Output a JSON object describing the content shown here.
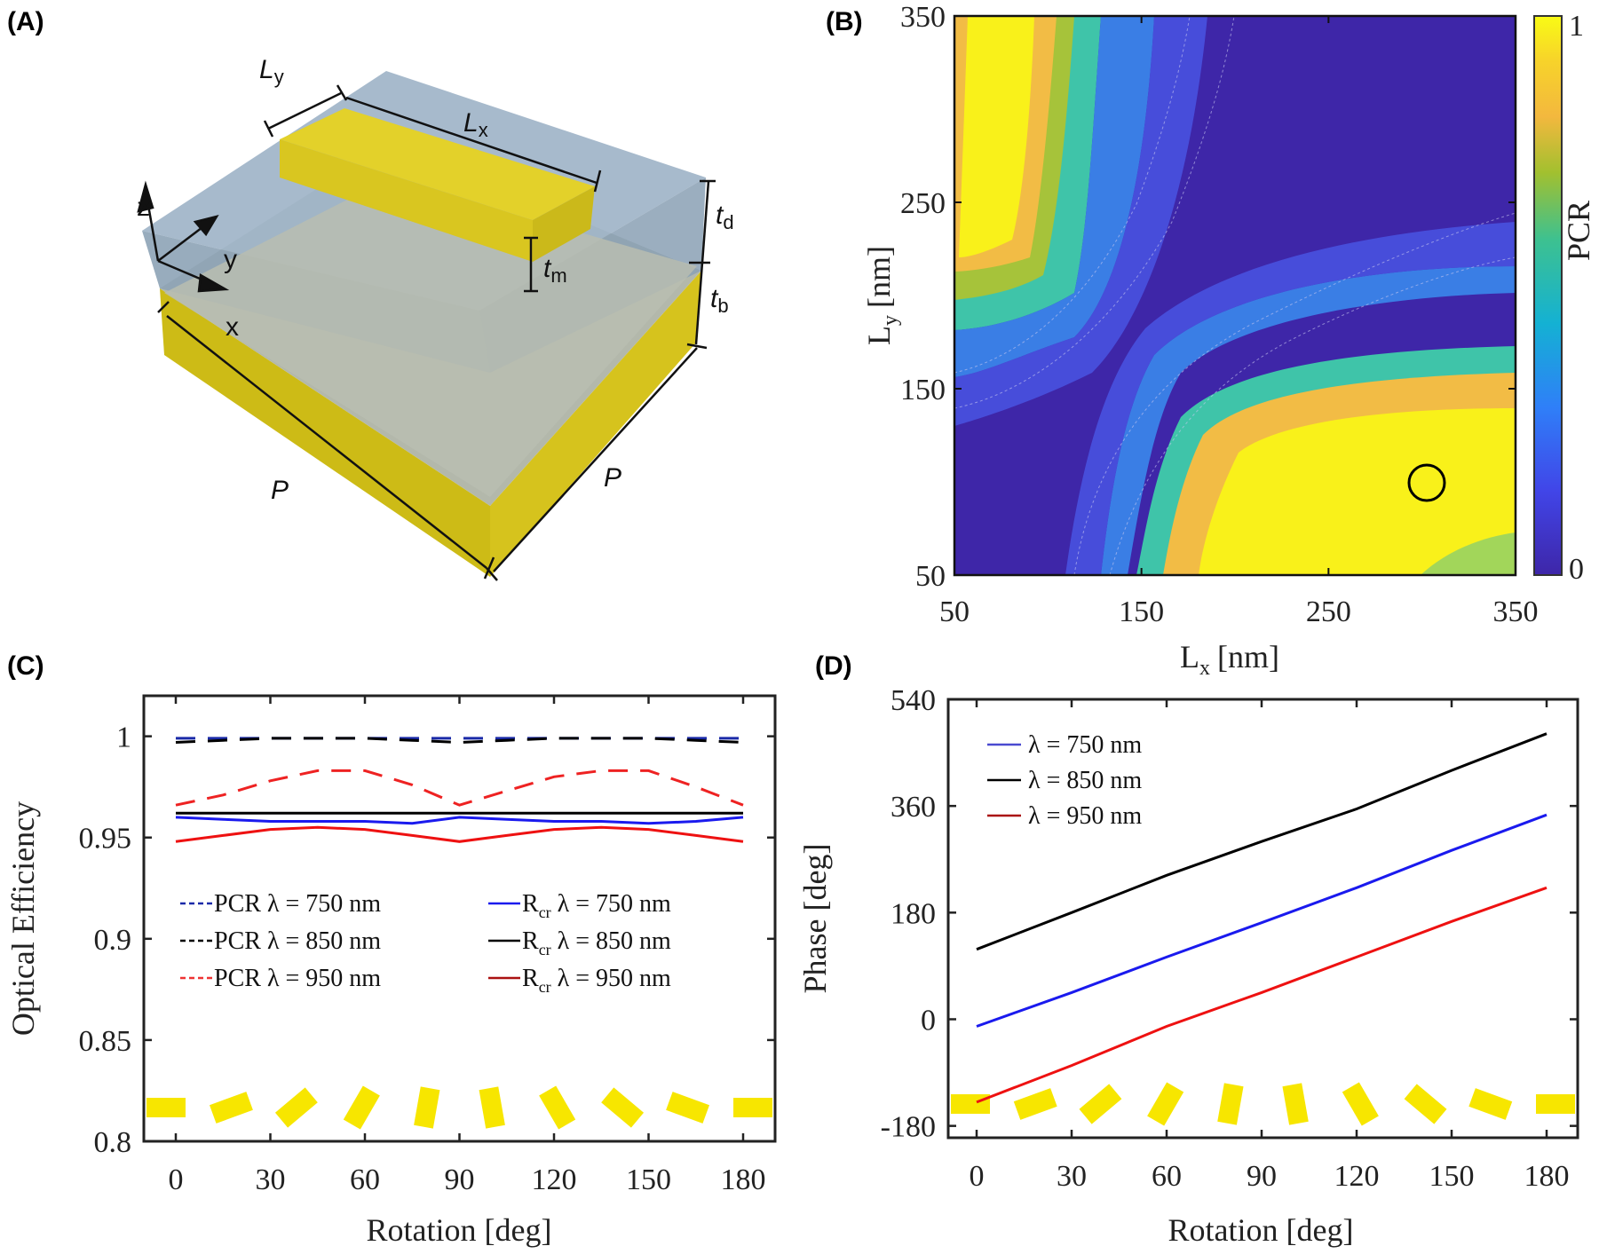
{
  "panels": {
    "a": {
      "label": "(A)"
    },
    "b": {
      "label": "(B)"
    },
    "c": {
      "label": "(C)"
    },
    "d": {
      "label": "(D)"
    }
  },
  "diagram": {
    "labels": {
      "ly": "L",
      "ly_sub": "y",
      "lx": "L",
      "lx_sub": "x",
      "td": "t",
      "td_sub": "d",
      "tm": "t",
      "tm_sub": "m",
      "tb": "t",
      "tb_sub": "b",
      "p1": "P",
      "p2": "P",
      "axis_z": "z",
      "axis_y": "y",
      "axis_x": "x"
    },
    "colors": {
      "metal": "#e3d12a",
      "dielectric": "#9fb4c8",
      "substrate_top": "#b7bcb0"
    }
  },
  "chart_data": [
    {
      "id": "b",
      "type": "heatmap",
      "title": "",
      "xlabel": "L",
      "xlabel_sub": "x",
      "xlabel_unit": "[nm]",
      "ylabel": "L",
      "ylabel_sub": "y",
      "ylabel_unit": "[nm]",
      "xlim": [
        50,
        350
      ],
      "ylim": [
        50,
        350
      ],
      "xticks": [
        "50",
        "150",
        "250",
        "350"
      ],
      "yticks": [
        "50",
        "150",
        "250",
        "350"
      ],
      "colorbar": {
        "label": "PCR",
        "min": 0,
        "max": 1,
        "ticks": [
          "0",
          "1"
        ],
        "colormap": "parula"
      },
      "description": "PCR high (~1) along bands at Lx≈80-130 for Ly>150 and Ly≈70-130 for Lx>170; low (~0) along diagonal Lx≈Ly and in corners",
      "marker": {
        "shape": "circle",
        "x": 300,
        "y": 100
      }
    },
    {
      "id": "c",
      "type": "line",
      "xlabel": "Rotation [deg]",
      "ylabel": "Optical Efficiency",
      "xlim": [
        -10,
        190
      ],
      "ylim": [
        0.8,
        1.02
      ],
      "xticks": [
        0,
        30,
        60,
        90,
        120,
        150,
        180
      ],
      "yticks": [
        0.8,
        0.85,
        0.9,
        0.95,
        1
      ],
      "ytick_labels": [
        "0.8",
        "0.85",
        "0.9",
        "0.95",
        "1"
      ],
      "x": [
        0,
        15,
        30,
        45,
        60,
        75,
        90,
        105,
        120,
        135,
        150,
        165,
        180
      ],
      "series": [
        {
          "name": "PCR λ = 750 nm",
          "color": "#1a2aa8",
          "dash": true,
          "values": [
            0.999,
            0.999,
            0.999,
            0.999,
            0.999,
            0.999,
            0.999,
            0.999,
            0.999,
            0.999,
            0.999,
            0.999,
            0.999
          ]
        },
        {
          "name": "PCR λ = 850 nm",
          "color": "#000000",
          "dash": true,
          "values": [
            0.997,
            0.998,
            0.999,
            0.999,
            0.999,
            0.998,
            0.997,
            0.998,
            0.999,
            0.999,
            0.999,
            0.998,
            0.997
          ]
        },
        {
          "name": "PCR λ = 950 nm",
          "color": "#ee2222",
          "dash": true,
          "values": [
            0.966,
            0.971,
            0.978,
            0.983,
            0.983,
            0.976,
            0.966,
            0.973,
            0.98,
            0.983,
            0.983,
            0.975,
            0.966
          ]
        },
        {
          "name": "R_cr λ = 750 nm",
          "color": "#1a1aee",
          "dash": false,
          "values": [
            0.96,
            0.959,
            0.958,
            0.958,
            0.958,
            0.957,
            0.96,
            0.959,
            0.958,
            0.958,
            0.957,
            0.958,
            0.96
          ]
        },
        {
          "name": "R_cr λ = 850 nm",
          "color": "#000000",
          "dash": false,
          "values": [
            0.962,
            0.962,
            0.962,
            0.962,
            0.962,
            0.962,
            0.962,
            0.962,
            0.962,
            0.962,
            0.962,
            0.962,
            0.962
          ]
        },
        {
          "name": "R_cr λ = 950 nm",
          "color": "#ee1111",
          "dash": false,
          "values": [
            0.948,
            0.951,
            0.954,
            0.955,
            0.954,
            0.951,
            0.948,
            0.951,
            0.954,
            0.955,
            0.954,
            0.951,
            0.948
          ]
        }
      ],
      "legend": {
        "placement": "center",
        "columns": 2,
        "entries": [
          {
            "prefix": "PCR",
            "sub": "",
            "text": " λ = 750 nm",
            "color": "#1a2aa8",
            "dash": true
          },
          {
            "prefix": "PCR",
            "sub": "",
            "text": " λ = 850 nm",
            "color": "#000000",
            "dash": true
          },
          {
            "prefix": "PCR",
            "sub": "",
            "text": " λ = 950 nm",
            "color": "#ee3333",
            "dash": true
          },
          {
            "prefix": "R",
            "sub": "cr",
            "text": " λ = 750 nm",
            "color": "#1a1aee",
            "dash": false
          },
          {
            "prefix": "R",
            "sub": "cr",
            "text": " λ = 850 nm",
            "color": "#000000",
            "dash": false
          },
          {
            "prefix": "R",
            "sub": "cr",
            "text": " λ = 950 nm",
            "color": "#aa1111",
            "dash": false
          }
        ]
      },
      "rotation_glyphs": {
        "angles_deg": [
          0,
          20,
          40,
          60,
          80,
          100,
          120,
          140,
          160,
          180
        ],
        "color": "#f7e600"
      }
    },
    {
      "id": "d",
      "type": "line",
      "xlabel": "Rotation [deg]",
      "ylabel": "Phase [deg]",
      "xlim": [
        -10,
        190
      ],
      "ylim": [
        -200,
        540
      ],
      "xticks": [
        0,
        30,
        60,
        90,
        120,
        150,
        180
      ],
      "yticks": [
        -180,
        0,
        180,
        360,
        540
      ],
      "ytick_labels": [
        "-180",
        "0",
        "180",
        "360",
        "540"
      ],
      "x": [
        0,
        30,
        60,
        90,
        120,
        150,
        180
      ],
      "series": [
        {
          "name": "λ = 750 nm",
          "color": "#1a1aee",
          "values": [
            -12,
            45,
            105,
            163,
            222,
            285,
            345
          ]
        },
        {
          "name": "λ = 850 nm",
          "color": "#000000",
          "values": [
            118,
            180,
            243,
            300,
            355,
            420,
            482
          ]
        },
        {
          "name": "λ = 950 nm",
          "color": "#ee1111",
          "values": [
            -140,
            -78,
            -12,
            45,
            105,
            165,
            222
          ]
        }
      ],
      "legend": {
        "placement": "top-left",
        "entries": [
          {
            "text": "λ = 750 nm",
            "color": "#4a4ad0"
          },
          {
            "text": "λ = 850 nm",
            "color": "#000000"
          },
          {
            "text": "λ = 950 nm",
            "color": "#aa1111"
          }
        ]
      },
      "rotation_glyphs": {
        "angles_deg": [
          0,
          20,
          40,
          60,
          80,
          100,
          120,
          140,
          160,
          180
        ],
        "color": "#f7e600"
      }
    }
  ]
}
